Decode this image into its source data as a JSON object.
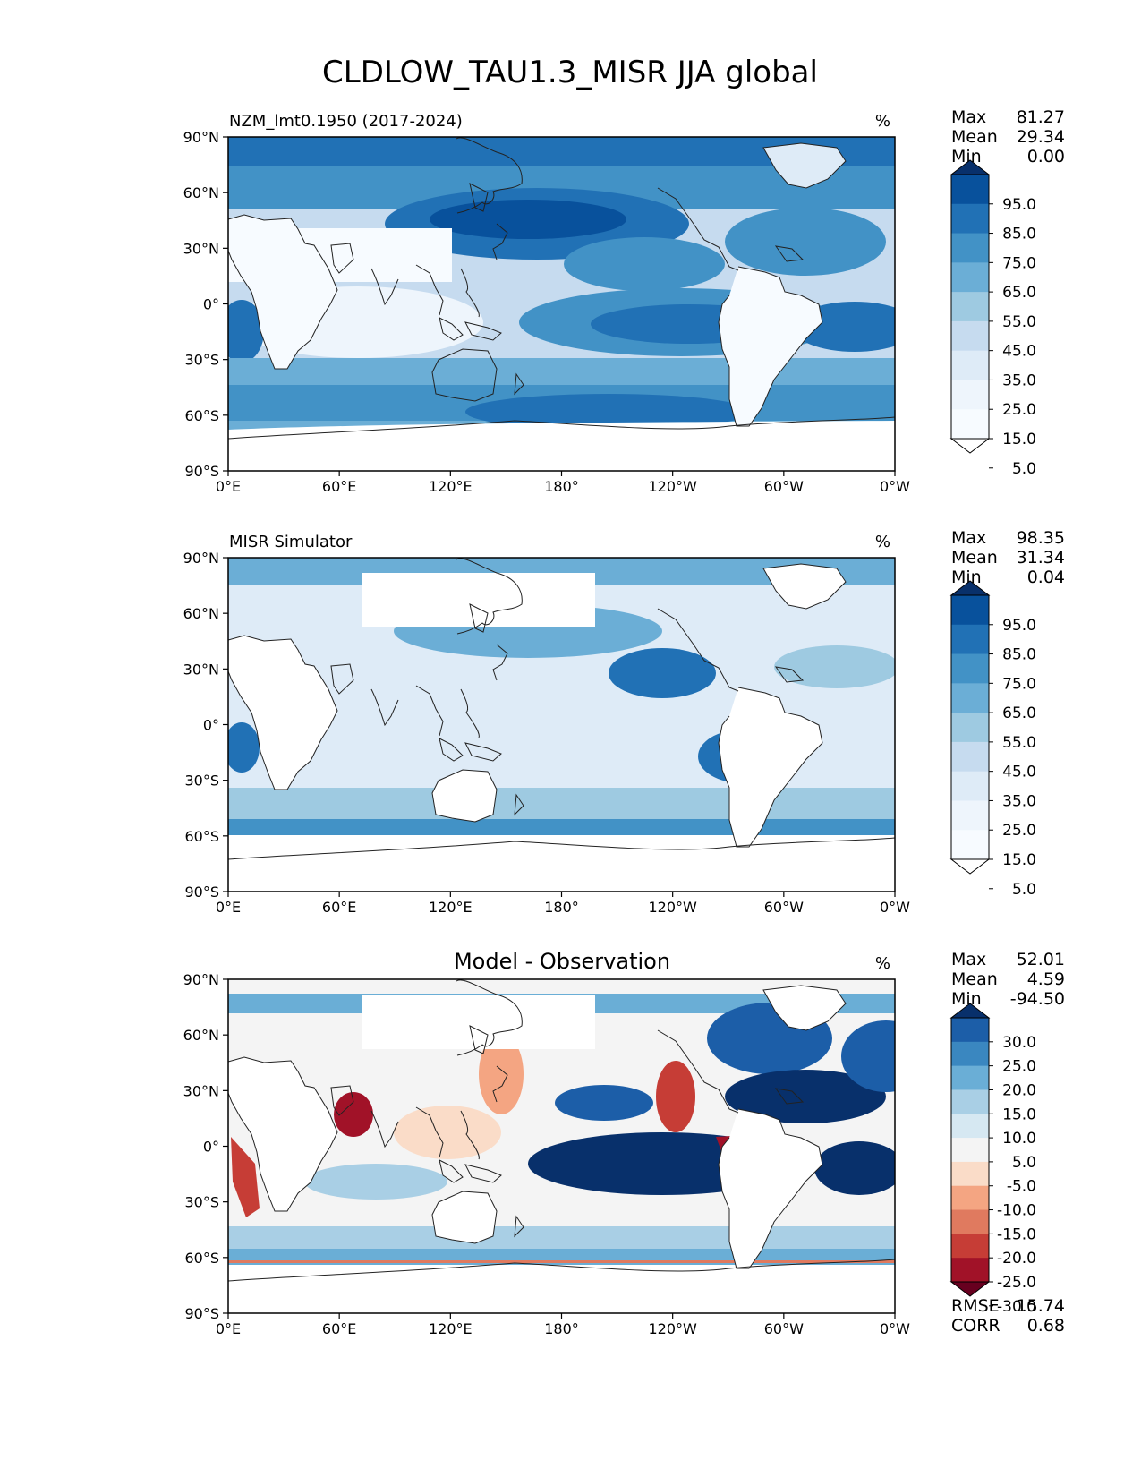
{
  "figure_title": "CLDLOW_TAU1.3_MISR JJA global",
  "stat_labels": {
    "max": "Max",
    "mean": "Mean",
    "min": "Min",
    "rmse": "RMSE",
    "corr": "CORR"
  },
  "chart_data": [
    {
      "type": "heatmap",
      "title": "NZM_lmt0.1950 (2017-2024)",
      "units": "%",
      "x_ticks": [
        "0°E",
        "60°E",
        "120°E",
        "180°",
        "120°W",
        "60°W",
        "0°W"
      ],
      "y_ticks": [
        "90°N",
        "60°N",
        "30°N",
        "0°",
        "30°S",
        "60°S",
        "90°S"
      ],
      "xlim": [
        0,
        360
      ],
      "ylim": [
        -90,
        90
      ],
      "stats": {
        "max": "81.27",
        "mean": "29.34",
        "min": "0.00"
      },
      "colorbar": {
        "levels": [
          "95.0",
          "85.0",
          "75.0",
          "65.0",
          "55.0",
          "45.0",
          "35.0",
          "25.0",
          "15.0",
          "5.0"
        ],
        "colors": [
          "#08306b",
          "#08519c",
          "#2171b5",
          "#4292c6",
          "#6baed6",
          "#9ecae1",
          "#c6dbef",
          "#deebf7",
          "#eef5fc",
          "#f7fbff",
          "#ffffff"
        ]
      }
    },
    {
      "type": "heatmap",
      "title": "MISR Simulator",
      "units": "%",
      "x_ticks": [
        "0°E",
        "60°E",
        "120°E",
        "180°",
        "120°W",
        "60°W",
        "0°W"
      ],
      "y_ticks": [
        "90°N",
        "60°N",
        "30°N",
        "0°",
        "30°S",
        "60°S",
        "90°S"
      ],
      "xlim": [
        0,
        360
      ],
      "ylim": [
        -90,
        90
      ],
      "stats": {
        "max": "98.35",
        "mean": "31.34",
        "min": "0.04"
      },
      "colorbar": {
        "levels": [
          "95.0",
          "85.0",
          "75.0",
          "65.0",
          "55.0",
          "45.0",
          "35.0",
          "25.0",
          "15.0",
          "5.0"
        ],
        "colors": [
          "#08306b",
          "#08519c",
          "#2171b5",
          "#4292c6",
          "#6baed6",
          "#9ecae1",
          "#c6dbef",
          "#deebf7",
          "#eef5fc",
          "#f7fbff",
          "#ffffff"
        ]
      }
    },
    {
      "type": "heatmap",
      "title": "Model - Observation",
      "units": "%",
      "x_ticks": [
        "0°E",
        "60°E",
        "120°E",
        "180°",
        "120°W",
        "60°W",
        "0°W"
      ],
      "y_ticks": [
        "90°N",
        "60°N",
        "30°N",
        "0°",
        "30°S",
        "60°S",
        "90°S"
      ],
      "xlim": [
        0,
        360
      ],
      "ylim": [
        -90,
        90
      ],
      "stats": {
        "max": "52.01",
        "mean": "4.59",
        "min": "-94.50"
      },
      "rmse": "15.74",
      "corr": "0.68",
      "colorbar": {
        "levels": [
          "30.0",
          "25.0",
          "20.0",
          "15.0",
          "10.0",
          "5.0",
          "-5.0",
          "-10.0",
          "-15.0",
          "-20.0",
          "-25.0",
          "-30.0"
        ],
        "colors": [
          "#08306b",
          "#1c5ea8",
          "#3a87c0",
          "#6aaed6",
          "#a9cfe5",
          "#d6e8f2",
          "#f4f4f4",
          "#fadcc8",
          "#f4a582",
          "#e07a5f",
          "#c63d36",
          "#a11228",
          "#67001f"
        ]
      }
    }
  ]
}
